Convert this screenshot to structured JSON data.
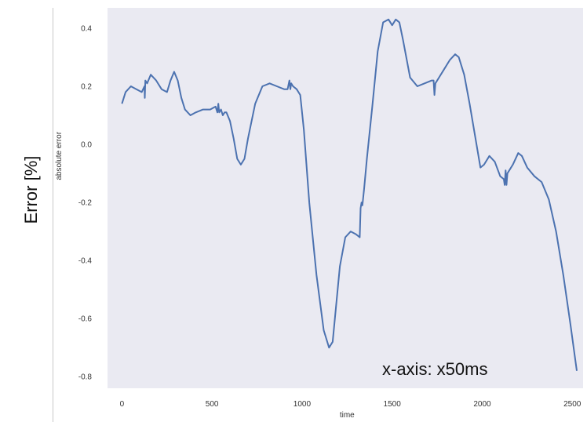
{
  "annotations": {
    "outer_ylabel": "Error [%]",
    "xaxis_note": "x-axis: x50ms"
  },
  "chart_data": {
    "type": "line",
    "title": "",
    "xlabel": "time",
    "ylabel": "absolute error",
    "xlim": [
      -80,
      2560
    ],
    "ylim": [
      -0.84,
      0.47
    ],
    "xticks": [
      0,
      500,
      1000,
      1500,
      2000,
      2500
    ],
    "yticks": [
      0.4,
      0.2,
      0.0,
      -0.2,
      -0.4,
      -0.6,
      -0.8
    ],
    "ytick_labels": [
      "0.4",
      "0.2",
      "0.0",
      "-0.2",
      "-0.4",
      "-0.6",
      "-0.8"
    ],
    "grid": false,
    "background_color": "#eaeaf2",
    "line_color": "#4c72b0",
    "series": [
      {
        "x": [
          0,
          20,
          50,
          80,
          110,
          125,
          127,
          130,
          140,
          160,
          190,
          220,
          250,
          270,
          290,
          310,
          330,
          350,
          380,
          410,
          450,
          490,
          520,
          530,
          535,
          540,
          550,
          560,
          570,
          580,
          600,
          620,
          640,
          660,
          680,
          700,
          740,
          780,
          820,
          860,
          900,
          920,
          930,
          935,
          940,
          950,
          970,
          990,
          1010,
          1040,
          1080,
          1120,
          1150,
          1170,
          1190,
          1210,
          1240,
          1270,
          1300,
          1320,
          1325,
          1330,
          1335,
          1345,
          1360,
          1390,
          1420,
          1450,
          1480,
          1500,
          1520,
          1540,
          1560,
          1600,
          1640,
          1680,
          1720,
          1730,
          1735,
          1740,
          1760,
          1790,
          1820,
          1850,
          1870,
          1900,
          1930,
          1960,
          1990,
          2010,
          2040,
          2070,
          2100,
          2120,
          2125,
          2130,
          2135,
          2140,
          2150,
          2170,
          2200,
          2220,
          2250,
          2290,
          2330,
          2370,
          2410,
          2450,
          2490,
          2525
        ],
        "y": [
          0.14,
          0.18,
          0.2,
          0.19,
          0.18,
          0.2,
          0.16,
          0.22,
          0.21,
          0.24,
          0.22,
          0.19,
          0.18,
          0.22,
          0.25,
          0.22,
          0.16,
          0.12,
          0.1,
          0.11,
          0.12,
          0.12,
          0.13,
          0.11,
          0.14,
          0.11,
          0.12,
          0.1,
          0.11,
          0.11,
          0.08,
          0.02,
          -0.05,
          -0.07,
          -0.05,
          0.02,
          0.14,
          0.2,
          0.21,
          0.2,
          0.19,
          0.19,
          0.22,
          0.19,
          0.21,
          0.2,
          0.19,
          0.17,
          0.05,
          -0.2,
          -0.45,
          -0.64,
          -0.7,
          -0.68,
          -0.55,
          -0.42,
          -0.32,
          -0.3,
          -0.31,
          -0.32,
          -0.22,
          -0.2,
          -0.21,
          -0.15,
          -0.05,
          0.13,
          0.32,
          0.42,
          0.43,
          0.41,
          0.43,
          0.42,
          0.36,
          0.23,
          0.2,
          0.21,
          0.22,
          0.22,
          0.17,
          0.21,
          0.23,
          0.26,
          0.29,
          0.31,
          0.3,
          0.24,
          0.14,
          0.03,
          -0.08,
          -0.07,
          -0.04,
          -0.06,
          -0.11,
          -0.12,
          -0.14,
          -0.09,
          -0.14,
          -0.1,
          -0.09,
          -0.07,
          -0.03,
          -0.04,
          -0.08,
          -0.11,
          -0.13,
          -0.19,
          -0.3,
          -0.45,
          -0.62,
          -0.78
        ]
      }
    ]
  }
}
